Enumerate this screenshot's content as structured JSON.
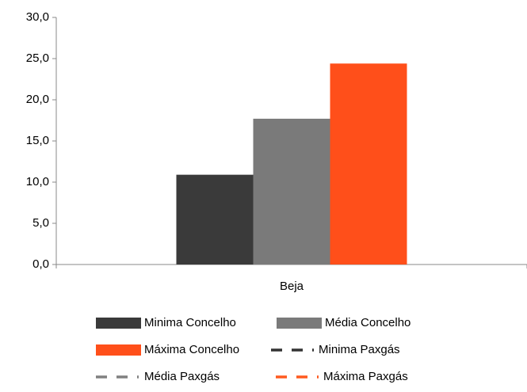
{
  "chart_data": {
    "type": "bar",
    "categories": [
      "Beja"
    ],
    "series": [
      {
        "name": "Minima Concelho",
        "color": "#3a3a3a",
        "style": "bar",
        "values": [
          10.9
        ]
      },
      {
        "name": "Média Concelho",
        "color": "#7a7a7a",
        "style": "bar",
        "values": [
          17.7
        ]
      },
      {
        "name": "Máxima Concelho",
        "color": "#ff4f1a",
        "style": "bar",
        "values": [
          24.4
        ]
      },
      {
        "name": "Minima Paxgás",
        "color": "#333333",
        "style": "dashed-line",
        "values": [
          null
        ]
      },
      {
        "name": "Média Paxgás",
        "color": "#808080",
        "style": "dashed-line",
        "values": [
          null
        ]
      },
      {
        "name": "Máxima Paxgás",
        "color": "#ff5a1f",
        "style": "dashed-line",
        "values": [
          null
        ]
      }
    ],
    "ylim": [
      0,
      30
    ],
    "yticks": [
      {
        "value": 0,
        "label": "0,0"
      },
      {
        "value": 5,
        "label": "5,0"
      },
      {
        "value": 10,
        "label": "10,0"
      },
      {
        "value": 15,
        "label": "15,0"
      },
      {
        "value": 20,
        "label": "20,0"
      },
      {
        "value": 25,
        "label": "25,0"
      },
      {
        "value": 30,
        "label": "30,0"
      }
    ],
    "legend": "bottom"
  }
}
